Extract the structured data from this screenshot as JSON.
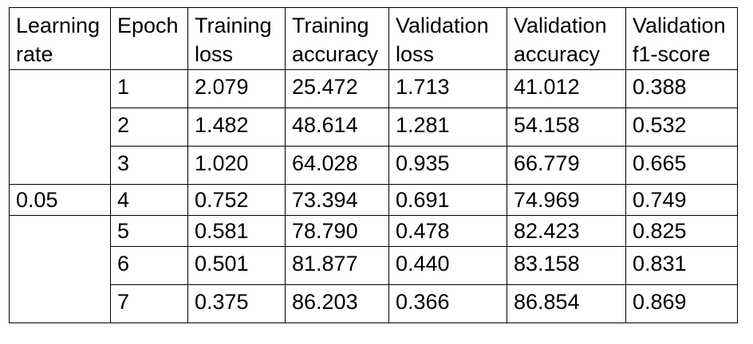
{
  "table": {
    "headers": [
      "Learning rate",
      "Epoch",
      "Training loss",
      "Training accuracy",
      "Validation loss",
      "Validation accuracy",
      "Validation f1-score"
    ],
    "learning_rate": "0.05",
    "rows": [
      {
        "epoch": "1",
        "training_loss": "2.079",
        "training_accuracy": "25.472",
        "validation_loss": "1.713",
        "validation_accuracy": "41.012",
        "validation_f1": "0.388"
      },
      {
        "epoch": "2",
        "training_loss": "1.482",
        "training_accuracy": "48.614",
        "validation_loss": "1.281",
        "validation_accuracy": "54.158",
        "validation_f1": "0.532"
      },
      {
        "epoch": "3",
        "training_loss": "1.020",
        "training_accuracy": "64.028",
        "validation_loss": "0.935",
        "validation_accuracy": "66.779",
        "validation_f1": "0.665"
      },
      {
        "epoch": "4",
        "training_loss": "0.752",
        "training_accuracy": "73.394",
        "validation_loss": "0.691",
        "validation_accuracy": "74.969",
        "validation_f1": "0.749"
      },
      {
        "epoch": "5",
        "training_loss": "0.581",
        "training_accuracy": "78.790",
        "validation_loss": "0.478",
        "validation_accuracy": "82.423",
        "validation_f1": "0.825"
      },
      {
        "epoch": "6",
        "training_loss": "0.501",
        "training_accuracy": "81.877",
        "validation_loss": "0.440",
        "validation_accuracy": "83.158",
        "validation_f1": "0.831"
      },
      {
        "epoch": "7",
        "training_loss": "0.375",
        "training_accuracy": "86.203",
        "validation_loss": "0.366",
        "validation_accuracy": "86.854",
        "validation_f1": "0.869"
      }
    ]
  }
}
